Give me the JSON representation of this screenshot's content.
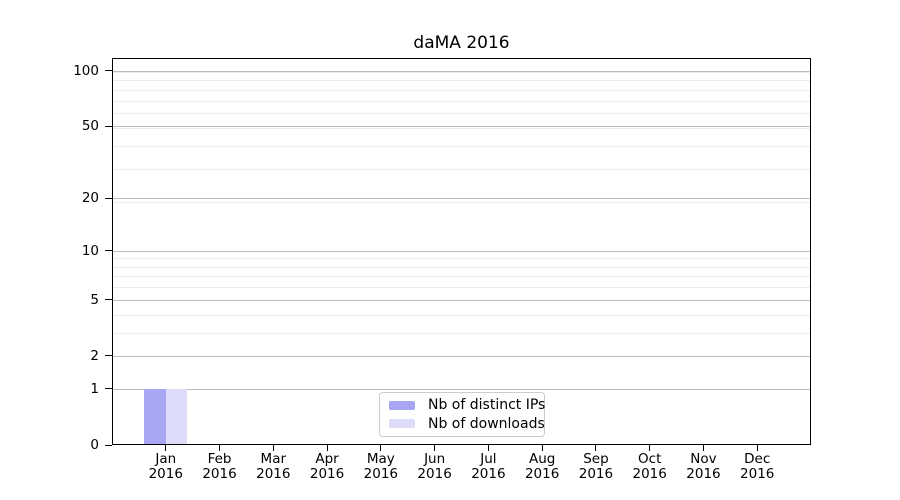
{
  "chart_data": {
    "type": "bar",
    "title": "daMA 2016",
    "categories": [
      "Jan",
      "Feb",
      "Mar",
      "Apr",
      "May",
      "Jun",
      "Jul",
      "Aug",
      "Sep",
      "Oct",
      "Nov",
      "Dec"
    ],
    "category_year": "2016",
    "series": [
      {
        "name": "Nb of distinct IPs",
        "color": "#a6a6f2",
        "values": [
          1,
          0,
          0,
          0,
          0,
          0,
          0,
          0,
          0,
          0,
          0,
          0
        ]
      },
      {
        "name": "Nb of downloads",
        "color": "#dcdcf8",
        "values": [
          1,
          0,
          0,
          0,
          0,
          0,
          0,
          0,
          0,
          0,
          0,
          0
        ]
      }
    ],
    "y_ticks": [
      0,
      1,
      2,
      5,
      10,
      20,
      50,
      100
    ],
    "y_scale": "log10(1+x)",
    "ylim": [
      0,
      118
    ],
    "xlabel": "",
    "ylabel": "",
    "grid": "horizontal, major and minor",
    "legend_position": "lower center",
    "colors": {
      "major_gridline": "#bdbdbd",
      "minor_gridline": "#ececec",
      "axis": "#000000",
      "legend_border": "#cccccc"
    }
  }
}
